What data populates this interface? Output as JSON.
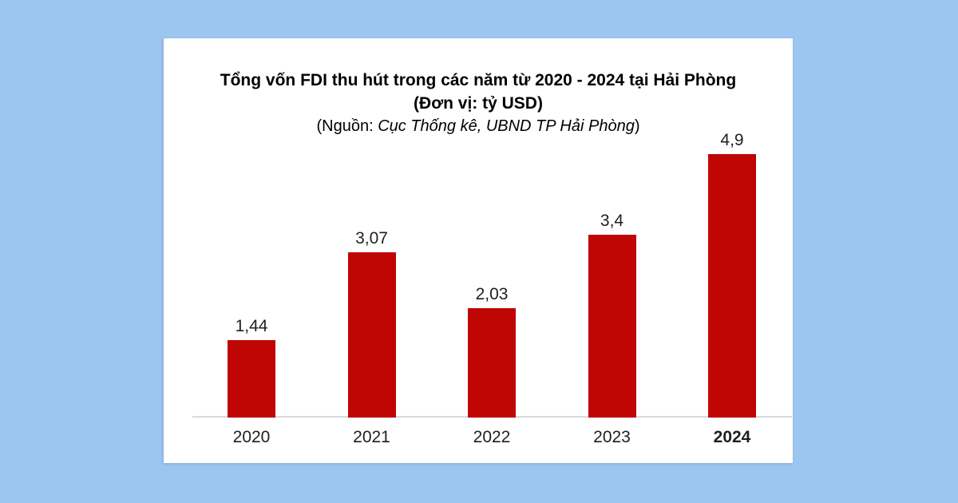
{
  "page": {
    "background_color": "#9CC5F0",
    "card_color": "#FFFFFF"
  },
  "chart_data": {
    "type": "bar",
    "title": "Tổng vốn FDI thu hút trong các năm từ 2020 - 2024 tại Hải Phòng",
    "subtitle": "(Đơn vị: tỷ USD)",
    "source": {
      "prefix": "(Nguồn: ",
      "italic": "Cục Thống kê, UBND TP Hải Phòng",
      "suffix": ")"
    },
    "categories": [
      "2020",
      "2021",
      "2022",
      "2023",
      "2024"
    ],
    "values": [
      1.44,
      3.07,
      2.03,
      3.4,
      4.9
    ],
    "value_labels": [
      "1,44",
      "3,07",
      "2,03",
      "3,4",
      "4,9"
    ],
    "highlighted_category": "2024",
    "ylim": [
      0,
      5.2
    ],
    "grid": false,
    "legend": false,
    "bar_color": "#C00505",
    "axis_line_color": "#D9D9D9",
    "title_color": "#000000",
    "value_label_color": "#1F1F1F",
    "category_label_color": "#1F1F1F"
  }
}
